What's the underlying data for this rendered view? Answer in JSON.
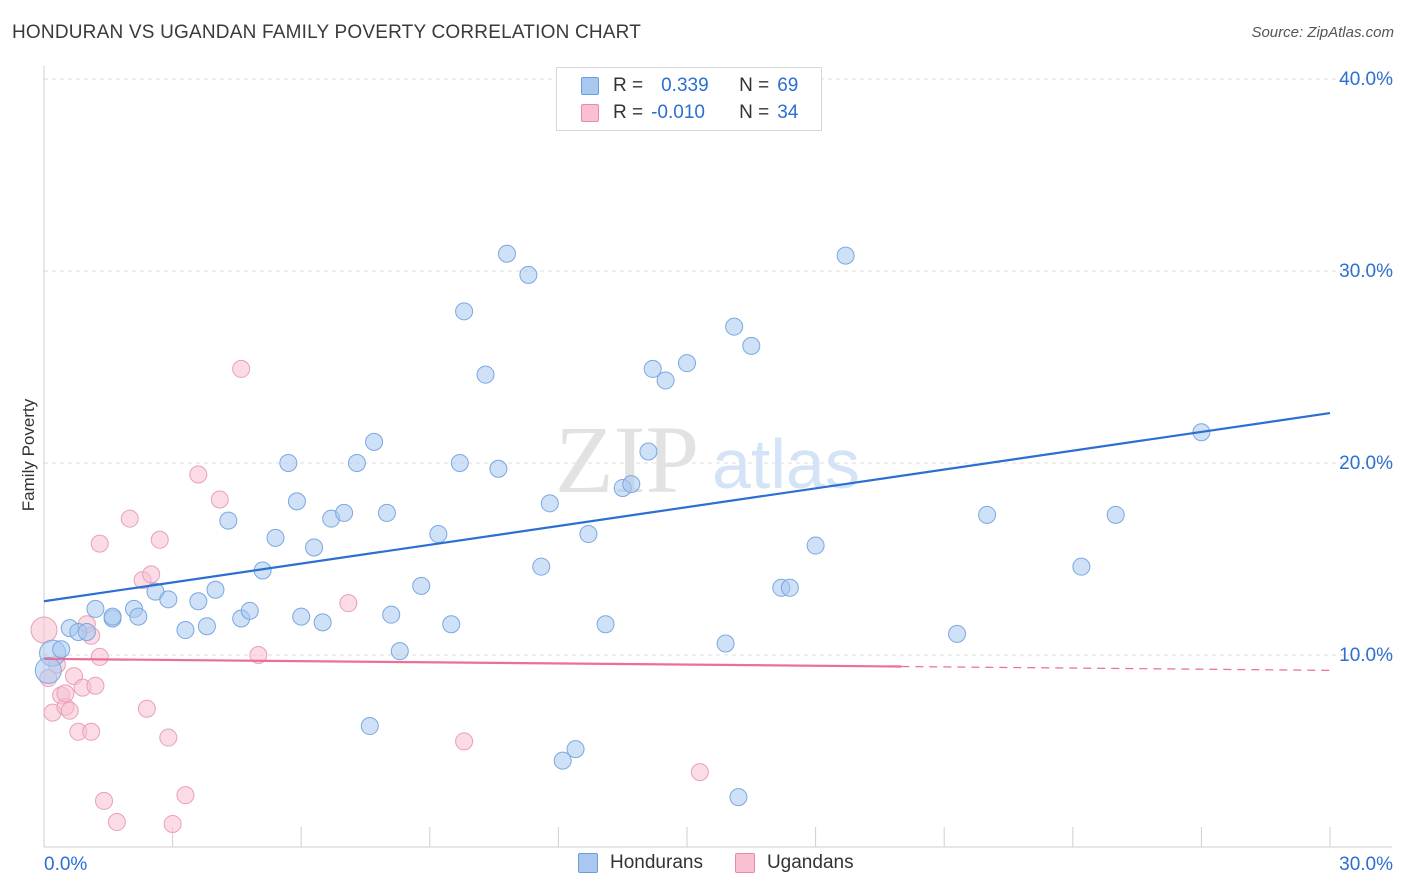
{
  "header": {
    "title": "HONDURAN VS UGANDAN FAMILY POVERTY CORRELATION CHART",
    "source": "Source: ZipAtlas.com"
  },
  "legend": {
    "rows": [
      {
        "r_label": "R =",
        "r_value": "0.339",
        "n_label": "N =",
        "n_value": "69",
        "color": "#a8c8f0",
        "border": "#6a9ede"
      },
      {
        "r_label": "R =",
        "r_value": "-0.010",
        "n_label": "N =",
        "n_value": "34",
        "color": "#f8c0d0",
        "border": "#e88aa8"
      }
    ]
  },
  "bottom_legend": {
    "items": [
      {
        "label": "Hondurans",
        "color": "#a8c8f0",
        "border": "#6a9ede"
      },
      {
        "label": "Ugandans",
        "color": "#f8c0d0",
        "border": "#e88aa8"
      }
    ]
  },
  "watermark": {
    "zip": "ZIP",
    "atlas": "atlas"
  },
  "chart_data": {
    "type": "scatter",
    "title": "HONDURAN VS UGANDAN FAMILY POVERTY CORRELATION CHART",
    "xlabel": "",
    "ylabel": "Family Poverty",
    "xlim": [
      0,
      30
    ],
    "ylim": [
      0,
      40
    ],
    "x_tick_labels": [
      "0.0%",
      "30.0%"
    ],
    "y_tick_labels": [
      {
        "value": 10,
        "label": "10.0%"
      },
      {
        "value": 20,
        "label": "20.0%"
      },
      {
        "value": 30,
        "label": "30.0%"
      },
      {
        "value": 40,
        "label": "40.0%"
      }
    ],
    "grid": true,
    "colors": {
      "hondurans": "#2b6fd0",
      "ugandans": "#e8709a",
      "hond_fill": "#a8c8f0",
      "ugan_fill": "#f8c0d0"
    },
    "series": [
      {
        "name": "Hondurans",
        "trend": {
          "x1": 0,
          "y1": 12.8,
          "x2": 30,
          "y2": 22.6
        },
        "points": [
          [
            0.2,
            10.1
          ],
          [
            0.6,
            11.4
          ],
          [
            0.8,
            11.2
          ],
          [
            1.2,
            12.4
          ],
          [
            1.6,
            11.9
          ],
          [
            2.1,
            12.4
          ],
          [
            2.6,
            13.3
          ],
          [
            2.9,
            12.9
          ],
          [
            1.6,
            12.0
          ],
          [
            2.2,
            12.0
          ],
          [
            3.3,
            11.3
          ],
          [
            3.6,
            12.8
          ],
          [
            3.8,
            11.5
          ],
          [
            4.0,
            13.4
          ],
          [
            4.3,
            17.0
          ],
          [
            4.6,
            11.9
          ],
          [
            4.8,
            12.3
          ],
          [
            5.1,
            14.4
          ],
          [
            5.4,
            16.1
          ],
          [
            5.7,
            20.0
          ],
          [
            5.9,
            18.0
          ],
          [
            6.0,
            12.0
          ],
          [
            6.3,
            15.6
          ],
          [
            6.5,
            11.7
          ],
          [
            6.7,
            17.1
          ],
          [
            7.0,
            17.4
          ],
          [
            7.3,
            20.0
          ],
          [
            7.6,
            6.3
          ],
          [
            7.7,
            21.1
          ],
          [
            8.0,
            17.4
          ],
          [
            8.1,
            12.1
          ],
          [
            8.3,
            10.2
          ],
          [
            8.8,
            13.6
          ],
          [
            9.2,
            16.3
          ],
          [
            9.5,
            11.6
          ],
          [
            9.7,
            20.0
          ],
          [
            9.8,
            27.9
          ],
          [
            10.3,
            24.6
          ],
          [
            10.6,
            19.7
          ],
          [
            10.8,
            30.9
          ],
          [
            11.3,
            29.8
          ],
          [
            11.6,
            14.6
          ],
          [
            11.8,
            17.9
          ],
          [
            12.1,
            4.5
          ],
          [
            12.4,
            5.1
          ],
          [
            12.7,
            16.3
          ],
          [
            13.1,
            11.6
          ],
          [
            13.5,
            18.7
          ],
          [
            13.7,
            18.9
          ],
          [
            14.1,
            20.6
          ],
          [
            14.2,
            24.9
          ],
          [
            14.5,
            24.3
          ],
          [
            15.0,
            25.2
          ],
          [
            15.9,
            10.6
          ],
          [
            16.1,
            27.1
          ],
          [
            16.2,
            2.6
          ],
          [
            16.5,
            26.1
          ],
          [
            17.2,
            13.5
          ],
          [
            17.4,
            13.5
          ],
          [
            18.0,
            15.7
          ],
          [
            18.7,
            30.8
          ],
          [
            21.3,
            11.1
          ],
          [
            22.0,
            17.3
          ],
          [
            24.2,
            14.6
          ],
          [
            25.0,
            17.3
          ],
          [
            27.0,
            21.6
          ],
          [
            0.4,
            10.3
          ],
          [
            1.0,
            11.2
          ],
          [
            0.1,
            9.2
          ]
        ]
      },
      {
        "name": "Ugandans",
        "trend": {
          "x1": 0,
          "y1": 9.8,
          "x2": 20,
          "y2": 9.4,
          "dash_to": 30,
          "dash_y": 9.2
        },
        "points": [
          [
            0.0,
            11.3
          ],
          [
            0.1,
            8.8
          ],
          [
            0.2,
            7.0
          ],
          [
            0.3,
            9.5
          ],
          [
            0.4,
            7.9
          ],
          [
            0.5,
            7.3
          ],
          [
            0.6,
            7.1
          ],
          [
            0.7,
            8.9
          ],
          [
            0.8,
            6.0
          ],
          [
            0.9,
            8.3
          ],
          [
            1.0,
            11.6
          ],
          [
            1.1,
            11.0
          ],
          [
            1.1,
            6.0
          ],
          [
            1.2,
            8.4
          ],
          [
            1.3,
            9.9
          ],
          [
            1.3,
            15.8
          ],
          [
            1.4,
            2.4
          ],
          [
            1.7,
            1.3
          ],
          [
            2.0,
            17.1
          ],
          [
            2.3,
            13.9
          ],
          [
            2.4,
            7.2
          ],
          [
            2.5,
            14.2
          ],
          [
            2.7,
            16.0
          ],
          [
            2.9,
            5.7
          ],
          [
            3.0,
            1.2
          ],
          [
            3.3,
            2.7
          ],
          [
            3.6,
            19.4
          ],
          [
            4.1,
            18.1
          ],
          [
            4.6,
            24.9
          ],
          [
            5.0,
            10.0
          ],
          [
            7.1,
            12.7
          ],
          [
            9.8,
            5.5
          ],
          [
            15.3,
            3.9
          ],
          [
            0.5,
            8.0
          ]
        ]
      }
    ]
  }
}
